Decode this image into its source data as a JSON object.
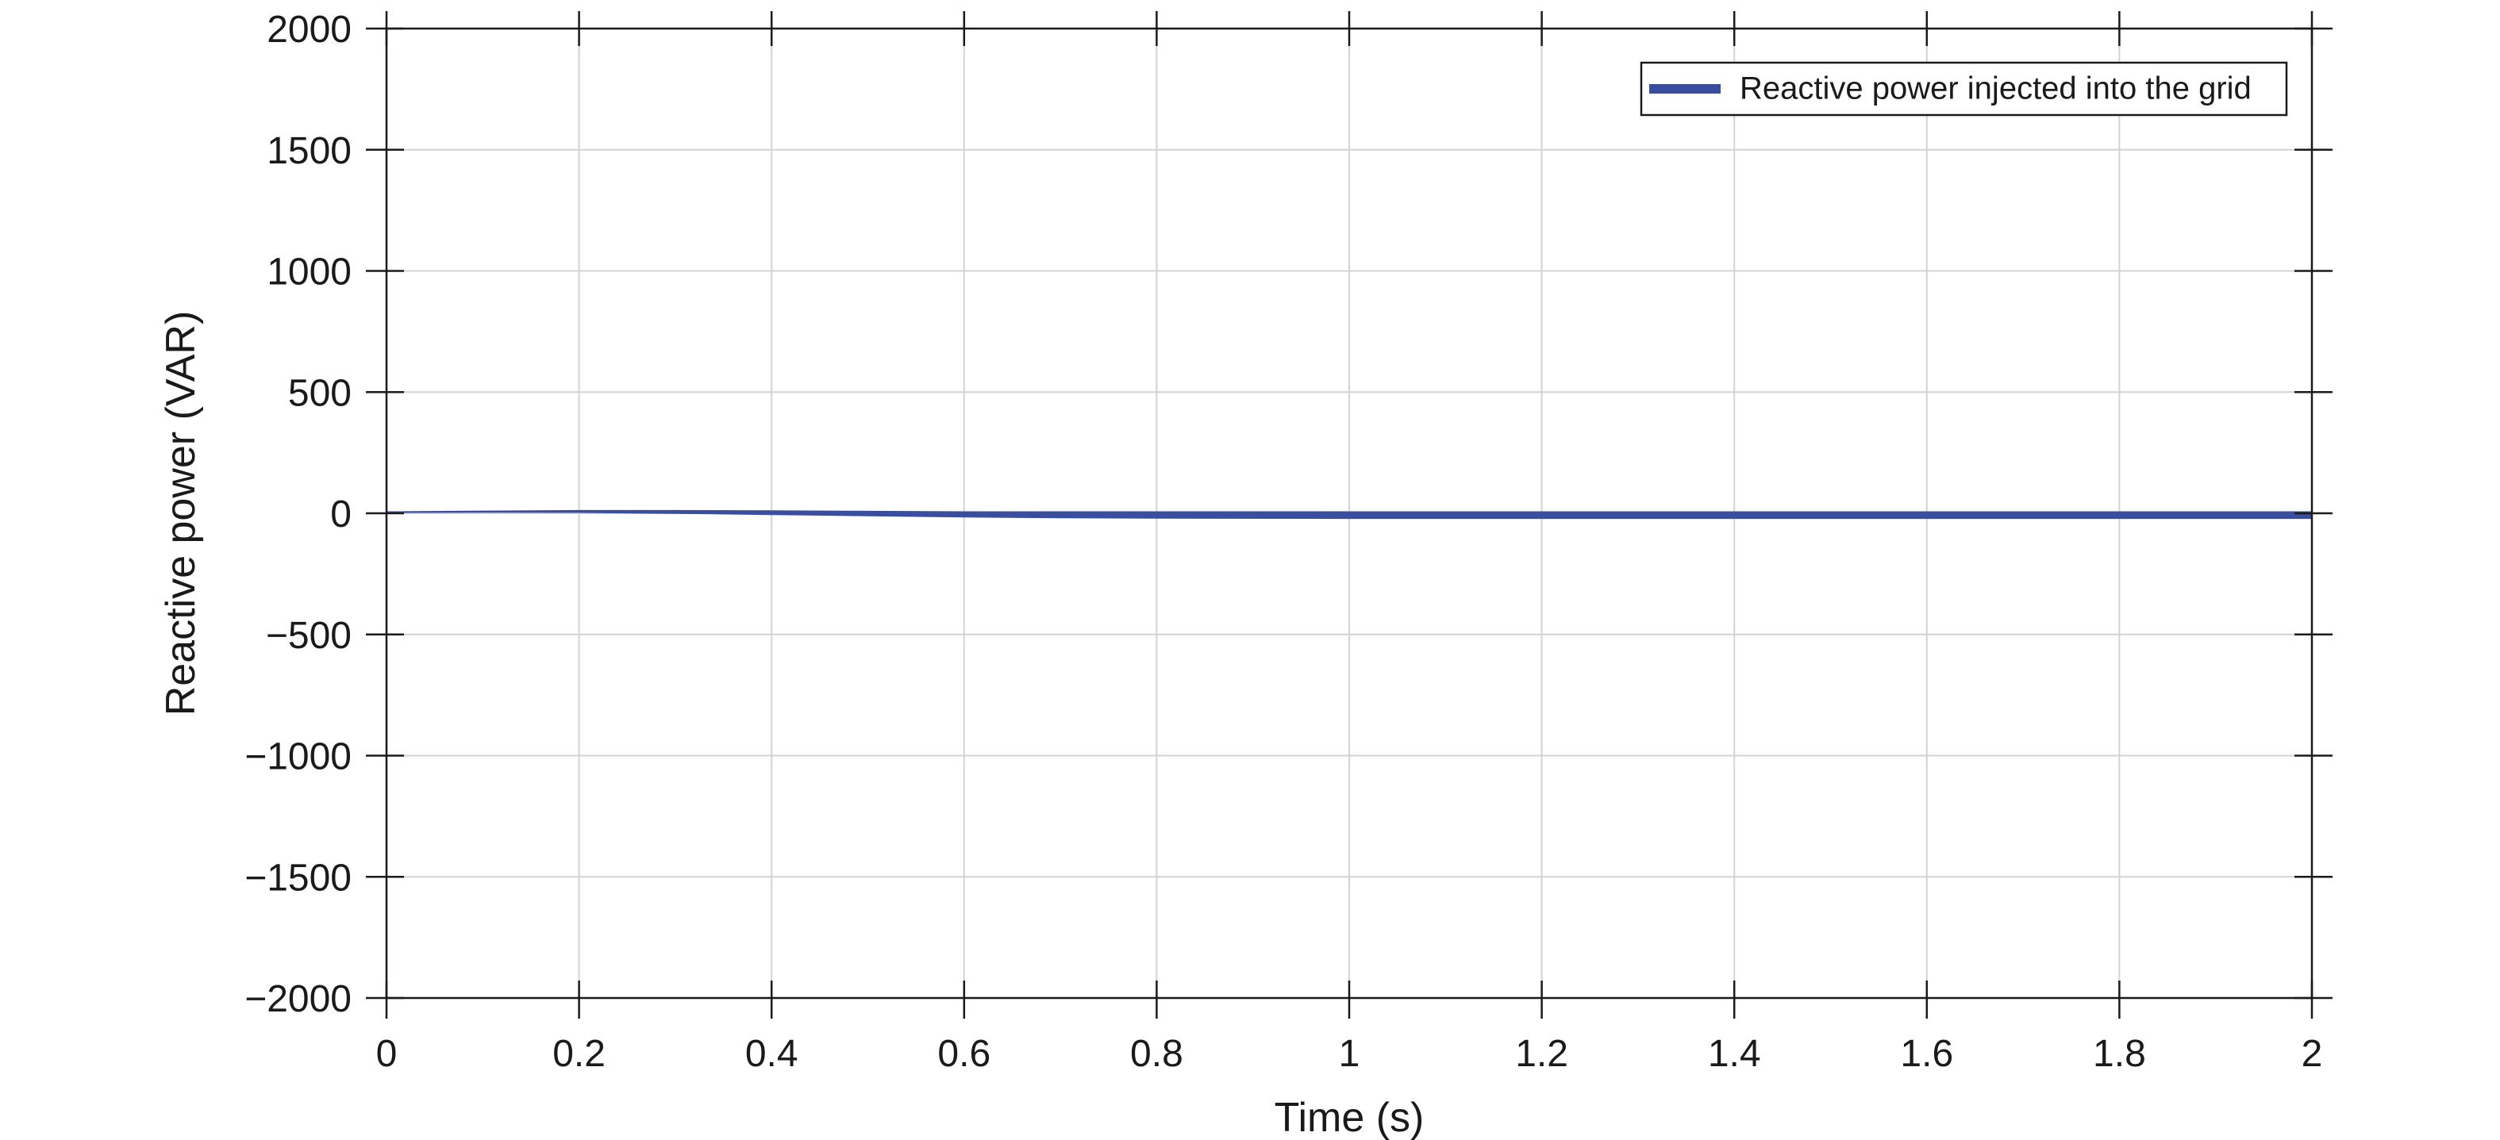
{
  "chart_data": {
    "type": "line",
    "title": "",
    "xlabel": "Time (s)",
    "ylabel": "Reactive power (VAR)",
    "xlim": [
      0,
      2
    ],
    "ylim": [
      -2000,
      2000
    ],
    "x_ticks": [
      0,
      0.2,
      0.4,
      0.6,
      0.8,
      1,
      1.2,
      1.4,
      1.6,
      1.8,
      2
    ],
    "x_tick_labels": [
      "0",
      "0.2",
      "0.4",
      "0.6",
      "0.8",
      "1",
      "1.2",
      "1.4",
      "1.6",
      "1.8",
      "2"
    ],
    "y_ticks": [
      2000,
      1500,
      1000,
      500,
      0,
      -500,
      -1000,
      -1500,
      -2000
    ],
    "y_tick_labels": [
      "2000",
      "1500",
      "1000",
      "500",
      "0",
      "−500",
      "−1000",
      "−1500",
      "−2000"
    ],
    "grid": true,
    "legend_position": "top-right",
    "series": [
      {
        "name": "Reactive power injected into the grid",
        "color": "#3a4ea0",
        "x": [
          0,
          0.1,
          0.2,
          0.3,
          0.4,
          0.5,
          0.6,
          0.7,
          0.8,
          1.0,
          1.2,
          1.4,
          1.6,
          1.8,
          2.0
        ],
        "upper": [
          5,
          8,
          10,
          10,
          9,
          7,
          5,
          5,
          5,
          5,
          5,
          5,
          5,
          5,
          5
        ],
        "lower": [
          5,
          6,
          5,
          1,
          -4,
          -9,
          -14,
          -17,
          -19,
          -20,
          -20,
          -20,
          -20,
          -20,
          -20
        ]
      }
    ]
  }
}
